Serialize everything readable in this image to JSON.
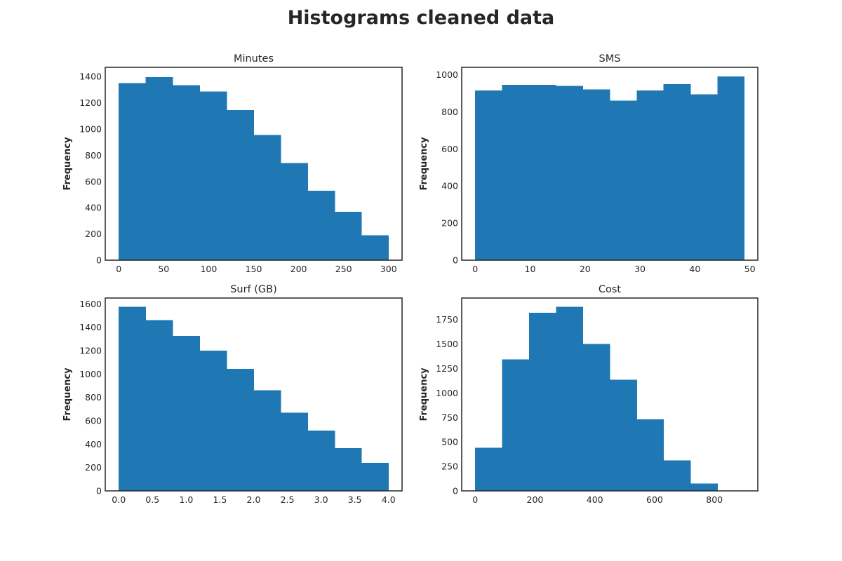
{
  "figure": {
    "title": "Histograms cleaned data",
    "bar_color": "#1f77b4",
    "frame_color": "#262626"
  },
  "chart_data": [
    {
      "type": "bar",
      "title": "Minutes",
      "xlabel": "",
      "ylabel": "Frequency",
      "bin_edges": [
        0,
        30,
        60,
        90,
        120,
        150,
        180,
        210,
        240,
        270,
        300
      ],
      "values": [
        1350,
        1395,
        1335,
        1285,
        1145,
        955,
        740,
        530,
        370,
        190
      ],
      "xlim": [
        -15,
        315
      ],
      "ylim": [
        0,
        1470
      ],
      "xticks": [
        0,
        50,
        100,
        150,
        200,
        250,
        300
      ],
      "xtick_labels": [
        "0",
        "50",
        "100",
        "150",
        "200",
        "250",
        "300"
      ],
      "yticks": [
        0,
        200,
        400,
        600,
        800,
        1000,
        1200,
        1400
      ],
      "ytick_labels": [
        "0",
        "200",
        "400",
        "600",
        "800",
        "1000",
        "1200",
        "1400"
      ],
      "grid": false
    },
    {
      "type": "bar",
      "title": "SMS",
      "xlabel": "",
      "ylabel": "Frequency",
      "bin_edges": [
        0,
        4.9,
        9.8,
        14.7,
        19.6,
        24.5,
        29.4,
        34.3,
        39.2,
        44.1,
        49
      ],
      "values": [
        915,
        945,
        945,
        940,
        920,
        860,
        915,
        950,
        895,
        990
      ],
      "xlim": [
        -2.45,
        51.45
      ],
      "ylim": [
        0,
        1040
      ],
      "xticks": [
        0,
        10,
        20,
        30,
        40,
        50
      ],
      "xtick_labels": [
        "0",
        "10",
        "20",
        "30",
        "40",
        "50"
      ],
      "yticks": [
        0,
        200,
        400,
        600,
        800,
        1000
      ],
      "ytick_labels": [
        "0",
        "200",
        "400",
        "600",
        "800",
        "1000"
      ],
      "grid": false
    },
    {
      "type": "bar",
      "title": "Surf (GB)",
      "xlabel": "",
      "ylabel": "Frequency",
      "bin_edges": [
        0,
        0.4,
        0.8,
        1.2,
        1.6,
        2.0,
        2.4,
        2.8,
        3.2,
        3.6,
        4.0
      ],
      "values": [
        1575,
        1460,
        1325,
        1200,
        1045,
        860,
        670,
        515,
        365,
        240
      ],
      "xlim": [
        -0.2,
        4.2
      ],
      "ylim": [
        0,
        1650
      ],
      "xticks": [
        0.0,
        0.5,
        1.0,
        1.5,
        2.0,
        2.5,
        3.0,
        3.5,
        4.0
      ],
      "xtick_labels": [
        "0.0",
        "0.5",
        "1.0",
        "1.5",
        "2.0",
        "2.5",
        "3.0",
        "3.5",
        "4.0"
      ],
      "yticks": [
        0,
        200,
        400,
        600,
        800,
        1000,
        1200,
        1400,
        1600
      ],
      "ytick_labels": [
        "0",
        "200",
        "400",
        "600",
        "800",
        "1000",
        "1200",
        "1400",
        "1600"
      ],
      "grid": false
    },
    {
      "type": "bar",
      "title": "Cost",
      "xlabel": "",
      "ylabel": "Frequency",
      "bin_edges": [
        0,
        90,
        180,
        270,
        360,
        450,
        540,
        630,
        720,
        810,
        900
      ],
      "values": [
        440,
        1345,
        1820,
        1880,
        1500,
        1135,
        730,
        310,
        75,
        5
      ],
      "xlim": [
        -45,
        945
      ],
      "ylim": [
        0,
        1970
      ],
      "xticks": [
        0,
        200,
        400,
        600,
        800
      ],
      "xtick_labels": [
        "0",
        "200",
        "400",
        "600",
        "800"
      ],
      "yticks": [
        0,
        250,
        500,
        750,
        1000,
        1250,
        1500,
        1750
      ],
      "ytick_labels": [
        "0",
        "250",
        "500",
        "750",
        "1000",
        "1250",
        "1500",
        "1750"
      ],
      "grid": false
    }
  ]
}
